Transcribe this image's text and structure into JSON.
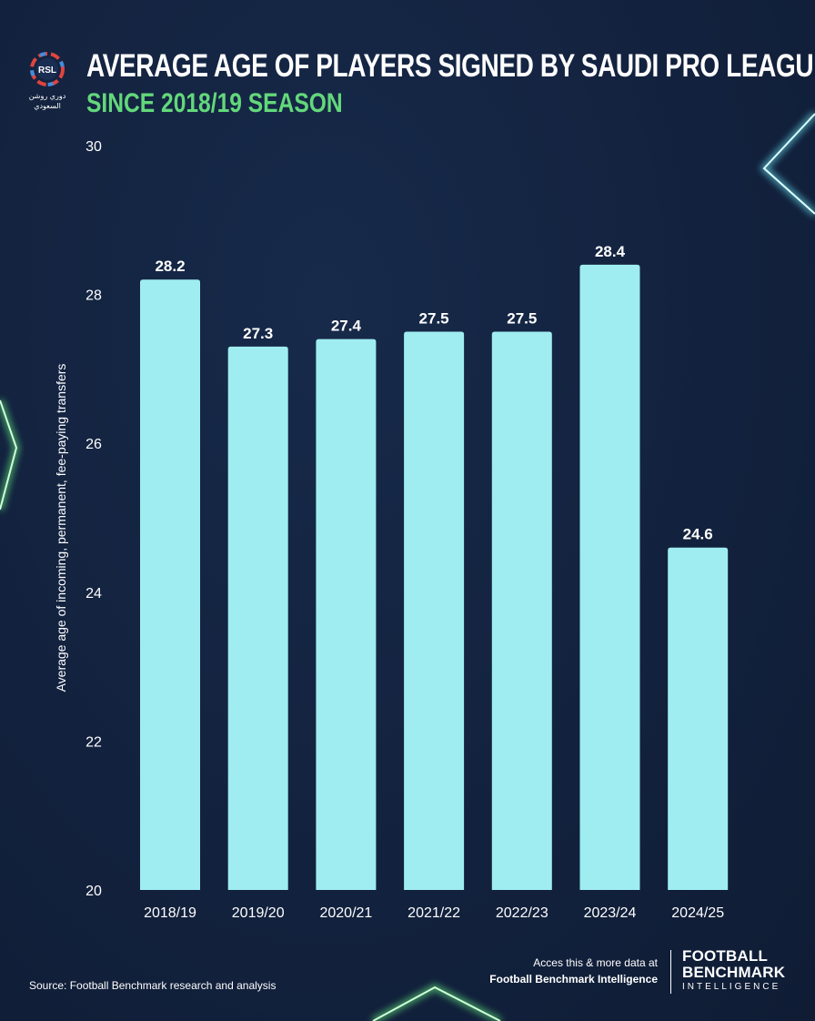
{
  "header": {
    "title": "AVERAGE AGE OF PLAYERS SIGNED BY SAUDI PRO LEAGUE CLUBS",
    "subtitle": "SINCE 2018/19 SEASON",
    "logo_text": "RSL",
    "logo_arabic_line1": "دوري روشن",
    "logo_arabic_line2": "السعودي"
  },
  "chart_data": {
    "type": "bar",
    "categories": [
      "2018/19",
      "2019/20",
      "2020/21",
      "2021/22",
      "2022/23",
      "2023/24",
      "2024/25"
    ],
    "values": [
      28.2,
      27.3,
      27.4,
      27.5,
      27.5,
      28.4,
      24.6
    ],
    "ylabel": "Average age of incoming, permanent, fee-paying transfers",
    "ylim": [
      20,
      30
    ],
    "yticks": [
      20,
      22,
      24,
      26,
      28,
      30
    ],
    "grid": false,
    "data_labels": true,
    "bar_color": "#9fedf1"
  },
  "footer": {
    "cta_line1": "Acces this & more data at",
    "cta_line2": "Football Benchmark Intelligence",
    "brand_line1": "FOOTBALL",
    "brand_line2": "BENCHMARK",
    "brand_line3": "INTELLIGENCE",
    "source": "Source: Football Benchmark research and analysis"
  },
  "colors": {
    "background": "#13223f",
    "subtitle": "#63d87b",
    "glow": "#6ef08a"
  }
}
